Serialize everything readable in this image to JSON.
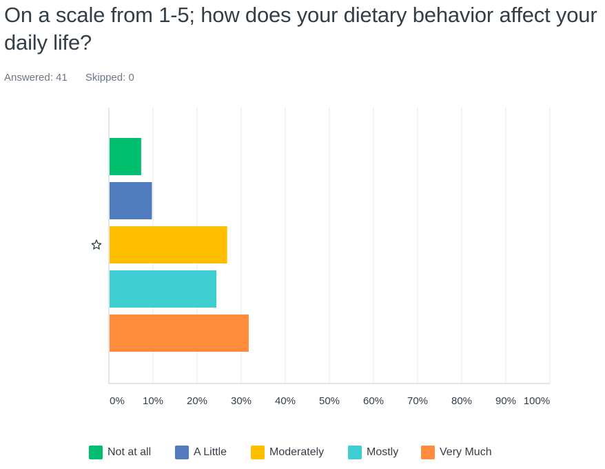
{
  "question": {
    "title": "On a scale from 1-5; how does your dietary behavior affect your daily life?",
    "answered": "Answered: 41",
    "skipped": "Skipped: 0"
  },
  "chart_data": {
    "type": "bar",
    "orientation": "horizontal",
    "categories": [
      "Not at all",
      "A Little",
      "Moderately",
      "Mostly",
      "Very Much"
    ],
    "values": [
      7.32,
      9.76,
      26.83,
      24.39,
      31.71
    ],
    "colors": [
      "#00bf6f",
      "#507cbe",
      "#ffbf00",
      "#3ecdd0",
      "#ff8b3d"
    ],
    "xlim": [
      0,
      100
    ],
    "ticks": [
      "0%",
      "10%",
      "20%",
      "30%",
      "40%",
      "50%",
      "60%",
      "70%",
      "80%",
      "90%",
      "100%"
    ],
    "starred_category": "Moderately",
    "legend_position": "bottom",
    "grid": true,
    "title": "",
    "xlabel": "",
    "ylabel": ""
  },
  "icons": {
    "star": "star-outline-icon"
  }
}
